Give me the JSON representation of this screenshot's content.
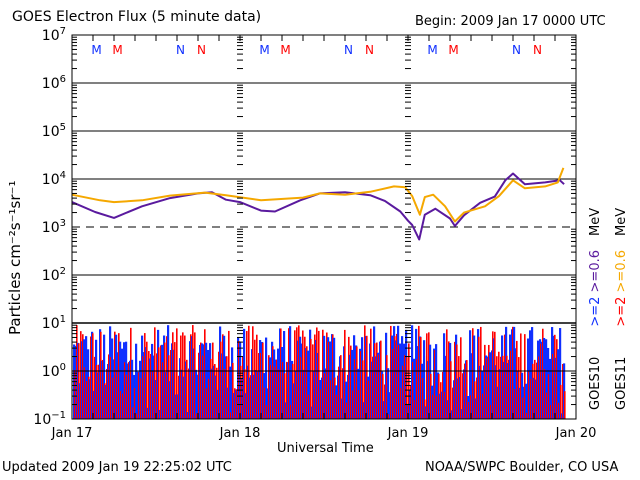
{
  "chart_data": {
    "type": "line",
    "title": "GOES Electron Flux (5 minute data)",
    "subtitle": "Begin: 2009 Jan 17 0000 UTC",
    "xlabel": "Universal Time",
    "ylabel": "Particles cm⁻²s⁻¹sr⁻¹",
    "x_unit": "hours since 2009 Jan 17 0000 UTC",
    "xlim": [
      0,
      72
    ],
    "x_ticks": [
      {
        "hour": 0,
        "label": "Jan 17"
      },
      {
        "hour": 24,
        "label": "Jan 18"
      },
      {
        "hour": 48,
        "label": "Jan 19"
      },
      {
        "hour": 72,
        "label": "Jan 20"
      }
    ],
    "yscale": "log",
    "ylim": [
      0.1,
      10000000
    ],
    "y_ticks": [
      {
        "value": 10000000,
        "base": "10",
        "exp": "7"
      },
      {
        "value": 1000000,
        "base": "10",
        "exp": "6"
      },
      {
        "value": 100000,
        "base": "10",
        "exp": "5"
      },
      {
        "value": 10000,
        "base": "10",
        "exp": "4"
      },
      {
        "value": 1000,
        "base": "10",
        "exp": "3"
      },
      {
        "value": 100,
        "base": "10",
        "exp": "2"
      },
      {
        "value": 10,
        "base": "10",
        "exp": "1"
      },
      {
        "value": 1,
        "base": "10",
        "exp": "0"
      },
      {
        "value": 0.1,
        "base": "10",
        "exp": "−1"
      }
    ],
    "grid_values": [
      1000000,
      100000,
      10000,
      100,
      10,
      1
    ],
    "dashed_threshold": 1000,
    "panel_divider_value": 10,
    "series": [
      {
        "name": "GOES10 >=0.6 MeV",
        "color": "#5a1a9e",
        "x": [
          0,
          3.3,
          6,
          10,
          14,
          18,
          20,
          22,
          24,
          27,
          29,
          32.6,
          35.4,
          39,
          42.6,
          44.7,
          46.9,
          48,
          48.6,
          49.6,
          50.4,
          51.9,
          54,
          54.7,
          56,
          58.3,
          60.4,
          61.9,
          63,
          64.7,
          67.6,
          69.7,
          70.3
        ],
        "y": [
          3300,
          2050,
          1550,
          2700,
          4000,
          5000,
          5300,
          3700,
          3300,
          2200,
          2100,
          3600,
          5000,
          5300,
          4600,
          3500,
          2100,
          1350,
          1100,
          550,
          1800,
          2400,
          1500,
          1050,
          1750,
          3200,
          4300,
          9400,
          13000,
          7800,
          8500,
          9400,
          7800
        ]
      },
      {
        "name": "GOES11 >=0.6 MeV",
        "color": "#f5a800",
        "x": [
          0,
          4,
          6,
          10,
          14,
          19,
          22,
          27,
          33,
          35.4,
          39,
          42.6,
          46,
          47.6,
          48.6,
          49.7,
          50.4,
          51.6,
          53.3,
          54.7,
          56,
          59,
          61,
          63,
          64.7,
          67.6,
          69.4,
          70.2
        ],
        "y": [
          4700,
          3600,
          3300,
          3600,
          4500,
          5200,
          4600,
          3600,
          4100,
          5000,
          4700,
          5400,
          7000,
          6700,
          4400,
          1800,
          4200,
          4700,
          2700,
          1300,
          2000,
          2700,
          4400,
          9400,
          6400,
          7000,
          8500,
          17000
        ]
      },
      {
        "name": "GOES10 >=2 MeV",
        "color": "#1030ff",
        "style": "spikes",
        "range": [
          0.1,
          10
        ],
        "end_hour": 70.3
      },
      {
        "name": "GOES11 >=2 MeV",
        "color": "#ff0000",
        "style": "spikes",
        "range": [
          0.1,
          10
        ],
        "end_hour": 70.3
      }
    ],
    "day_markers": [
      {
        "label": "M",
        "color": "#1030ff",
        "hour": 3.5
      },
      {
        "label": "M",
        "color": "#ff0000",
        "hour": 6.5
      },
      {
        "label": "N",
        "color": "#1030ff",
        "hour": 15.5
      },
      {
        "label": "N",
        "color": "#ff0000",
        "hour": 18.5
      },
      {
        "label": "M",
        "color": "#1030ff",
        "hour": 27.5
      },
      {
        "label": "M",
        "color": "#ff0000",
        "hour": 30.5
      },
      {
        "label": "N",
        "color": "#1030ff",
        "hour": 39.5
      },
      {
        "label": "N",
        "color": "#ff0000",
        "hour": 42.5
      },
      {
        "label": "M",
        "color": "#1030ff",
        "hour": 51.5
      },
      {
        "label": "M",
        "color": "#ff0000",
        "hour": 54.5
      },
      {
        "label": "N",
        "color": "#1030ff",
        "hour": 63.5
      },
      {
        "label": "N",
        "color": "#ff0000",
        "hour": 66.5
      }
    ],
    "legend": {
      "placement": "right",
      "goes10": {
        "sat": "GOES10",
        "ge2": ">=2",
        "ge06": ">=0.6",
        "unit": "MeV",
        "ge2_color": "#1030ff",
        "ge06_color": "#5a1a9e"
      },
      "goes11": {
        "sat": "GOES11",
        "ge2": ">=2",
        "ge06": ">=0.6",
        "unit": "MeV",
        "ge2_color": "#ff0000",
        "ge06_color": "#f5a800"
      }
    }
  },
  "footer": {
    "updated": "Updated 2009 Jan 19 22:25:02 UTC",
    "credit": "NOAA/SWPC Boulder, CO USA"
  }
}
